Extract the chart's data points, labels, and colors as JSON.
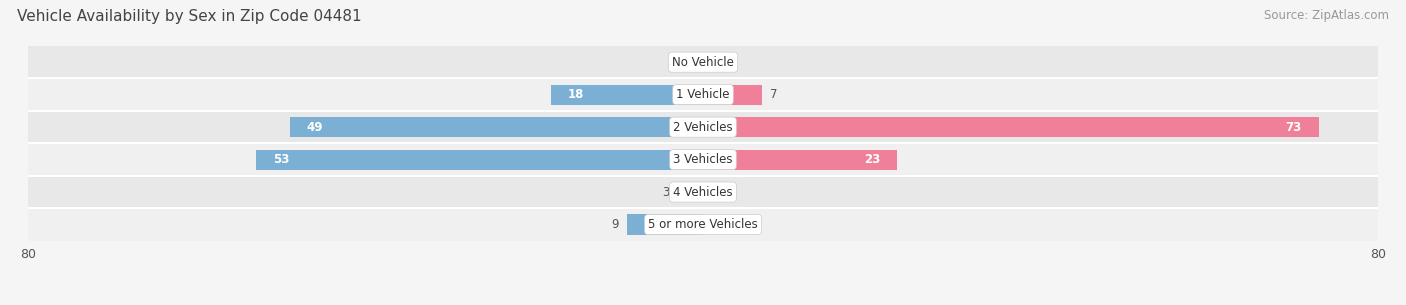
{
  "title": "Vehicle Availability by Sex in Zip Code 04481",
  "source": "Source: ZipAtlas.com",
  "categories": [
    "No Vehicle",
    "1 Vehicle",
    "2 Vehicles",
    "3 Vehicles",
    "4 Vehicles",
    "5 or more Vehicles"
  ],
  "male_values": [
    0,
    18,
    49,
    53,
    3,
    9
  ],
  "female_values": [
    0,
    7,
    73,
    23,
    0,
    0
  ],
  "male_color": "#7bafd4",
  "female_color": "#f08099",
  "bar_bg_color_even": "#e8e8e8",
  "bar_bg_color_odd": "#f0f0f0",
  "xlim": 80,
  "bar_height": 0.62,
  "label_color_inside": "#ffffff",
  "label_color_outside": "#555555",
  "title_fontsize": 11,
  "source_fontsize": 8.5,
  "tick_fontsize": 9,
  "category_fontsize": 8.5,
  "value_fontsize": 8.5,
  "legend_fontsize": 9,
  "threshold_inside": 10
}
